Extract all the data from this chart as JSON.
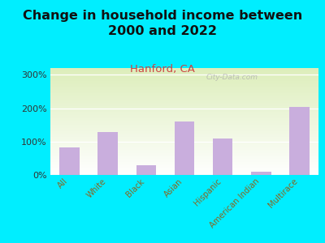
{
  "title": "Change in household income between\n2000 and 2022",
  "subtitle": "Hanford, CA",
  "categories": [
    "All",
    "White",
    "Black",
    "Asian",
    "Hispanic",
    "American Indian",
    "Multirace"
  ],
  "values": [
    82,
    128,
    28,
    160,
    108,
    10,
    203
  ],
  "bar_color": "#c9aedd",
  "title_fontsize": 11.5,
  "subtitle_fontsize": 9.5,
  "subtitle_color": "#cc4444",
  "background_outer": "#00eeff",
  "background_inner_top": "#ddeebb",
  "background_inner_bottom": "#ffffff",
  "ylabel_ticks": [
    "0%",
    "100%",
    "200%",
    "300%"
  ],
  "ytick_values": [
    0,
    100,
    200,
    300
  ],
  "ylim": [
    0,
    320
  ],
  "watermark": "City-Data.com",
  "xlabel_color": "#886622",
  "ytick_color": "#333333",
  "grid_color": "#cccccc"
}
